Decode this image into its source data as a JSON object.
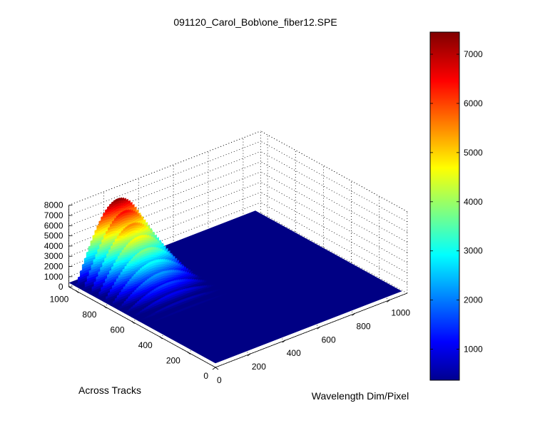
{
  "chart_data": {
    "type": "surface",
    "title": "091120_Carol_Bob\\one_fiber12.SPE",
    "xlabel": "Wavelength Dim/Pixel",
    "ylabel": "Across Tracks",
    "zlabel": "",
    "x_ticks": [
      "0",
      "200",
      "400",
      "600",
      "800",
      "1000"
    ],
    "y_ticks": [
      "0",
      "200",
      "400",
      "600",
      "800",
      "1000"
    ],
    "z_ticks": [
      "0",
      "1000",
      "2000",
      "3000",
      "4000",
      "5000",
      "6000",
      "7000",
      "8000"
    ],
    "xlim": [
      0,
      1100
    ],
    "ylim": [
      0,
      1050
    ],
    "zlim": [
      0,
      8000
    ],
    "colorbar": {
      "ticks": [
        "1000",
        "2000",
        "3000",
        "4000",
        "5000",
        "6000",
        "7000"
      ],
      "range": [
        370,
        7450
      ],
      "colormap": "jet"
    },
    "grid": true,
    "baseline_value": 400,
    "peak_value": 7450,
    "ridges": [
      {
        "across_track": 1000,
        "peak": 7450
      },
      {
        "across_track": 950,
        "peak": 6650
      },
      {
        "across_track": 900,
        "peak": 5750
      },
      {
        "across_track": 850,
        "peak": 4900
      },
      {
        "across_track": 800,
        "peak": 4050
      },
      {
        "across_track": 750,
        "peak": 3200
      },
      {
        "across_track": 700,
        "peak": 2450
      },
      {
        "across_track": 650,
        "peak": 1800
      },
      {
        "across_track": 600,
        "peak": 1250
      },
      {
        "across_track": 550,
        "peak": 850
      },
      {
        "across_track": 500,
        "peak": 600
      }
    ],
    "ridge_wavelength_range": [
      0,
      480
    ]
  }
}
